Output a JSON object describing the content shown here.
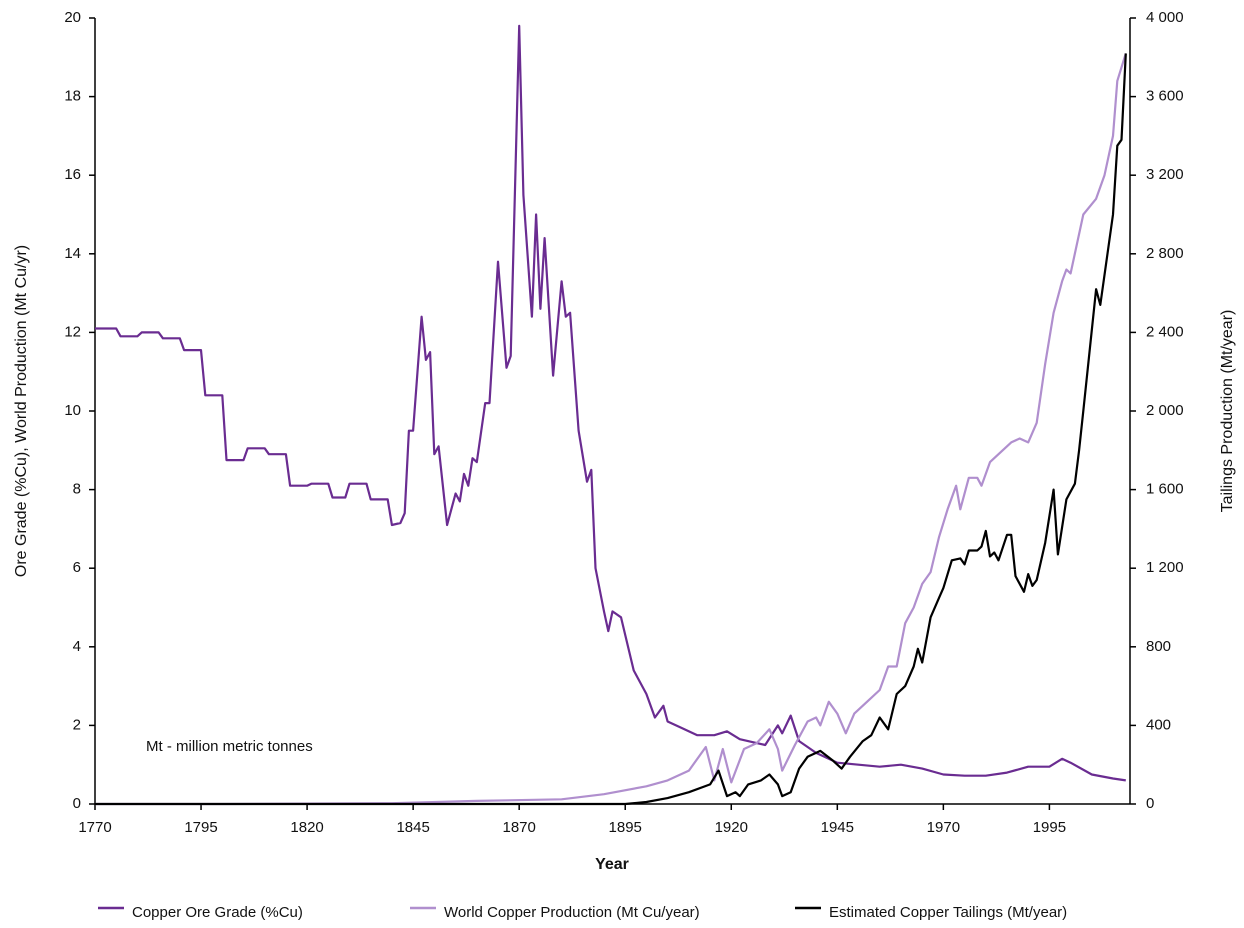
{
  "chart_data": {
    "type": "line",
    "xlabel": "Year",
    "ylabel": "Ore Grade (%Cu), World Production (Mt Cu/yr)",
    "y2label": "Tailings Production (Mt/year)",
    "annotation": "Mt - million metric tonnes",
    "xlim": [
      1770,
      2014
    ],
    "xticks": [
      1770,
      1795,
      1820,
      1845,
      1870,
      1895,
      1920,
      1945,
      1970,
      1995
    ],
    "ylim": [
      0,
      20
    ],
    "yticks": [
      0,
      2,
      4,
      6,
      8,
      10,
      12,
      14,
      16,
      18,
      20
    ],
    "y2lim": [
      0,
      4000
    ],
    "y2ticks": [
      0,
      400,
      800,
      {
        "value": 1200,
        "label": "1 200"
      },
      {
        "value": 1600,
        "label": "1 600"
      },
      {
        "value": 2000,
        "label": "2 000"
      },
      {
        "value": 2400,
        "label": "2 400"
      },
      {
        "value": 2800,
        "label": "2 800"
      },
      {
        "value": 3200,
        "label": "3 200"
      },
      {
        "value": 3600,
        "label": "3 600"
      },
      {
        "value": 4000,
        "label": "4 000"
      }
    ],
    "legend": "bottom",
    "series": [
      {
        "name": "Copper Ore Grade (%Cu)",
        "color": "#6a2c91",
        "x": [
          1770,
          1775,
          1776,
          1780,
          1781,
          1785,
          1786,
          1790,
          1791,
          1795,
          1796,
          1800,
          1801,
          1805,
          1806,
          1810,
          1811,
          1815,
          1816,
          1820,
          1821,
          1825,
          1826,
          1829,
          1830,
          1834,
          1835,
          1839,
          1840,
          1842,
          1843,
          1844,
          1845,
          1847,
          1848,
          1849,
          1850,
          1851,
          1853,
          1855,
          1856,
          1857,
          1858,
          1859,
          1860,
          1862,
          1863,
          1865,
          1867,
          1868,
          1870,
          1871,
          1873,
          1874,
          1875,
          1876,
          1878,
          1880,
          1881,
          1882,
          1884,
          1886,
          1887,
          1888,
          1890,
          1891,
          1892,
          1894,
          1897,
          1900,
          1902,
          1904,
          1905,
          1908,
          1912,
          1916,
          1919,
          1922,
          1926,
          1928,
          1931,
          1932,
          1934,
          1936,
          1940,
          1945,
          1950,
          1955,
          1960,
          1965,
          1970,
          1975,
          1980,
          1985,
          1990,
          1995,
          1998,
          2000,
          2005,
          2010,
          2013
        ],
        "values": [
          12.1,
          12.1,
          11.9,
          11.9,
          12.0,
          12.0,
          11.85,
          11.85,
          11.55,
          11.55,
          10.4,
          10.4,
          8.75,
          8.75,
          9.05,
          9.05,
          8.9,
          8.9,
          8.1,
          8.1,
          8.15,
          8.15,
          7.8,
          7.8,
          8.15,
          8.15,
          7.75,
          7.75,
          7.1,
          7.15,
          7.4,
          9.5,
          9.5,
          12.4,
          11.3,
          11.5,
          8.9,
          9.1,
          7.1,
          7.9,
          7.7,
          8.4,
          8.1,
          8.8,
          8.7,
          10.2,
          10.2,
          13.8,
          11.1,
          11.4,
          19.8,
          15.5,
          12.4,
          15.0,
          12.6,
          14.4,
          10.9,
          13.3,
          12.4,
          12.5,
          9.5,
          8.2,
          8.5,
          6.0,
          4.9,
          4.4,
          4.9,
          4.75,
          3.4,
          2.8,
          2.2,
          2.5,
          2.1,
          1.95,
          1.75,
          1.75,
          1.85,
          1.65,
          1.55,
          1.5,
          2.0,
          1.8,
          2.25,
          1.6,
          1.3,
          1.05,
          1.0,
          0.95,
          1.0,
          0.9,
          0.75,
          0.72,
          0.72,
          0.8,
          0.95,
          0.95,
          1.15,
          1.05,
          0.75,
          0.65,
          0.6
        ]
      },
      {
        "name": "World Copper Production (Mt Cu/year)",
        "color": "#b08fce",
        "x": [
          1770,
          1800,
          1840,
          1860,
          1880,
          1890,
          1900,
          1905,
          1910,
          1914,
          1916,
          1918,
          1920,
          1923,
          1926,
          1929,
          1931,
          1932,
          1935,
          1938,
          1940,
          1941,
          1943,
          1945,
          1947,
          1949,
          1952,
          1955,
          1957,
          1959,
          1961,
          1963,
          1965,
          1967,
          1969,
          1971,
          1973,
          1974,
          1976,
          1978,
          1979,
          1981,
          1983,
          1986,
          1988,
          1990,
          1992,
          1994,
          1996,
          1998,
          1999,
          2000,
          2003,
          2006,
          2008,
          2010,
          2011,
          2013
        ],
        "values": [
          0,
          0,
          0.02,
          0.08,
          0.12,
          0.25,
          0.45,
          0.6,
          0.85,
          1.45,
          0.6,
          1.4,
          0.55,
          1.4,
          1.55,
          1.9,
          1.4,
          0.85,
          1.5,
          2.1,
          2.2,
          2.0,
          2.6,
          2.3,
          1.8,
          2.3,
          2.6,
          2.9,
          3.5,
          3.5,
          4.6,
          5.0,
          5.6,
          5.9,
          6.8,
          7.5,
          8.1,
          7.5,
          8.3,
          8.3,
          8.1,
          8.7,
          8.9,
          9.2,
          9.3,
          9.2,
          9.7,
          11.2,
          12.5,
          13.3,
          13.6,
          13.5,
          15.0,
          15.4,
          16.0,
          17.0,
          18.4,
          19.1
        ]
      },
      {
        "name": "Estimated Copper Tailings (Mt/year)",
        "color": "#000000",
        "axis": "y2",
        "x": [
          1770,
          1895,
          1900,
          1905,
          1910,
          1915,
          1917,
          1919,
          1921,
          1922,
          1924,
          1927,
          1929,
          1931,
          1932,
          1934,
          1936,
          1938,
          1941,
          1944,
          1946,
          1948,
          1951,
          1953,
          1955,
          1957,
          1959,
          1961,
          1963,
          1964,
          1965,
          1967,
          1969,
          1970,
          1972,
          1974,
          1975,
          1976,
          1978,
          1979,
          1980,
          1981,
          1982,
          1983,
          1985,
          1986,
          1987,
          1989,
          1990,
          1991,
          1992,
          1994,
          1996,
          1997,
          1999,
          2001,
          2002,
          2003,
          2006,
          2007,
          2010,
          2011,
          2012,
          2013
        ],
        "values": [
          0,
          0,
          10,
          30,
          60,
          100,
          170,
          40,
          60,
          40,
          100,
          120,
          150,
          100,
          40,
          60,
          180,
          240,
          270,
          220,
          180,
          240,
          320,
          350,
          440,
          380,
          560,
          600,
          700,
          790,
          720,
          950,
          1050,
          1100,
          1240,
          1250,
          1220,
          1290,
          1290,
          1310,
          1390,
          1260,
          1280,
          1240,
          1370,
          1370,
          1160,
          1080,
          1170,
          1110,
          1140,
          1330,
          1600,
          1270,
          1550,
          1630,
          1800,
          2000,
          2620,
          2540,
          3000,
          3350,
          3380,
          3820
        ]
      }
    ]
  }
}
